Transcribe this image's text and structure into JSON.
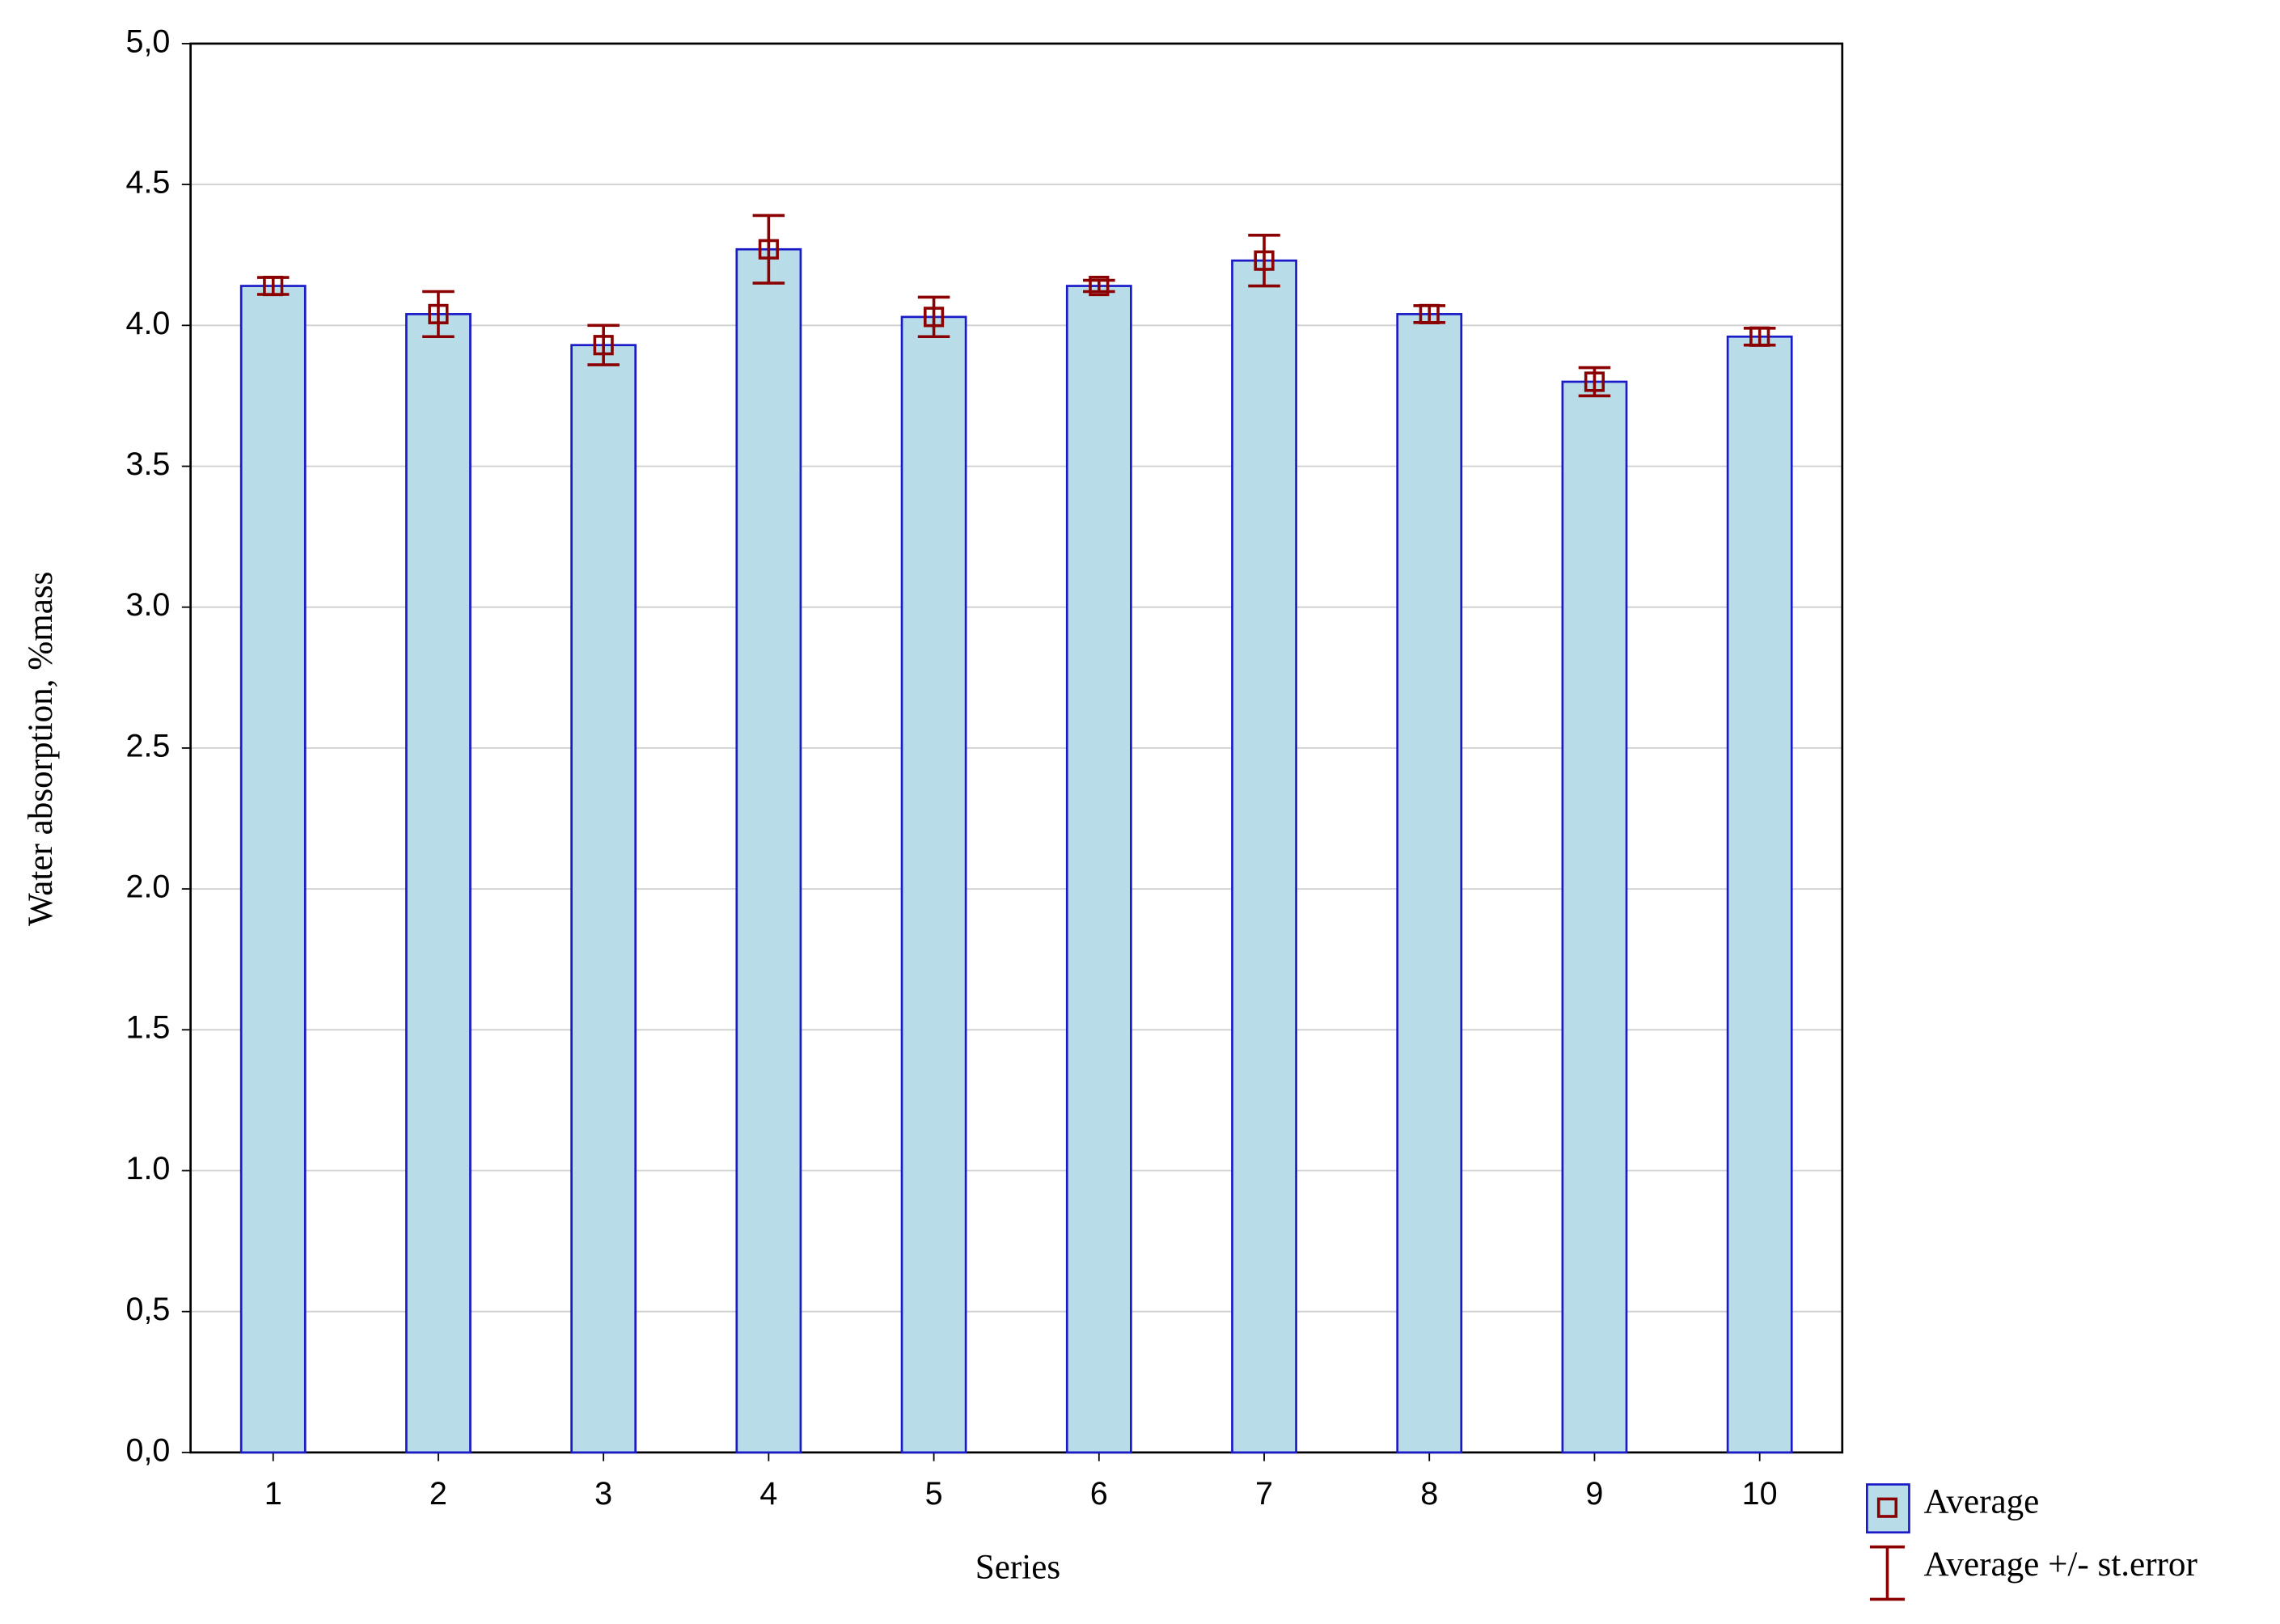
{
  "chart_data": {
    "type": "bar",
    "x_label": "Series",
    "y_label": "Water absorption, %mass",
    "categories": [
      "1",
      "2",
      "3",
      "4",
      "5",
      "6",
      "7",
      "8",
      "9",
      "10"
    ],
    "series": [
      {
        "name": "Average",
        "color": "#b8dde8",
        "edge_color": "#1a1ac8",
        "marker_color": "#8b0000",
        "values": [
          4.14,
          4.04,
          3.93,
          4.27,
          4.03,
          4.14,
          4.23,
          4.04,
          3.8,
          3.96
        ],
        "errors": [
          0.03,
          0.08,
          0.07,
          0.12,
          0.07,
          0.02,
          0.09,
          0.03,
          0.05,
          0.03
        ]
      }
    ],
    "error_label": "Average +/- st.error",
    "error_color": "#8b0000",
    "ylim": [
      0,
      5
    ],
    "yticks": [
      {
        "value": 0,
        "label": "0,0"
      },
      {
        "value": 0.5,
        "label": "0,5"
      },
      {
        "value": 1,
        "label": "1.0"
      },
      {
        "value": 1.5,
        "label": "1.5"
      },
      {
        "value": 2,
        "label": "2.0"
      },
      {
        "value": 2.5,
        "label": "2.5"
      },
      {
        "value": 3,
        "label": "3.0"
      },
      {
        "value": 3.5,
        "label": "3.5"
      },
      {
        "value": 4,
        "label": "4.0"
      },
      {
        "value": 4.5,
        "label": "4.5"
      },
      {
        "value": 5,
        "label": "5,0"
      }
    ],
    "grid": true
  }
}
